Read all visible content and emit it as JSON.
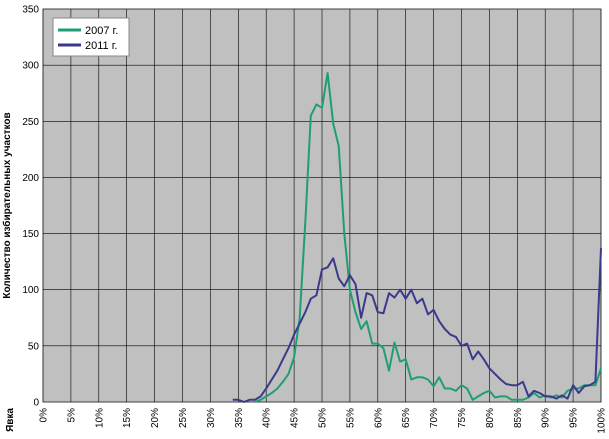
{
  "chart_data": {
    "type": "line",
    "title": "",
    "xlabel": "Явка",
    "ylabel": "Количество избирательных участков",
    "ylim": [
      0,
      350
    ],
    "xlim": [
      0,
      100
    ],
    "x_ticks": [
      "0%",
      "5%",
      "10%",
      "15%",
      "20%",
      "25%",
      "30%",
      "35%",
      "40%",
      "45%",
      "50%",
      "55%",
      "60%",
      "65%",
      "70%",
      "75%",
      "80%",
      "85%",
      "90%",
      "95%",
      "100%"
    ],
    "y_ticks": [
      0,
      50,
      100,
      150,
      200,
      250,
      300,
      350
    ],
    "legend_position": "top-left",
    "grid": true,
    "plot_background": "#c0c0c0",
    "series": [
      {
        "name": "2007 г.",
        "color": "#1f9e74",
        "x": [
          38,
          39,
          40,
          41,
          42,
          43,
          44,
          45,
          46,
          47,
          48,
          49,
          50,
          51,
          52,
          53,
          54,
          55,
          56,
          57,
          58,
          59,
          60,
          61,
          62,
          63,
          64,
          65,
          66,
          67,
          68,
          69,
          70,
          71,
          72,
          73,
          74,
          75,
          76,
          77,
          78,
          79,
          80,
          81,
          82,
          83,
          84,
          85,
          86,
          87,
          88,
          89,
          90,
          91,
          92,
          93,
          94,
          95,
          96,
          97,
          98,
          99,
          100
        ],
        "y": [
          0,
          2,
          5,
          8,
          12,
          18,
          25,
          40,
          75,
          160,
          255,
          265,
          262,
          293,
          248,
          228,
          150,
          100,
          80,
          65,
          72,
          52,
          52,
          48,
          28,
          53,
          36,
          38,
          20,
          22,
          22,
          20,
          14,
          22,
          12,
          12,
          10,
          15,
          12,
          2,
          5,
          8,
          10,
          4,
          5,
          5,
          2,
          2,
          2,
          4,
          8,
          4,
          6,
          4,
          6,
          4,
          10,
          12,
          12,
          15,
          15,
          15,
          30
        ]
      },
      {
        "name": "2011 г.",
        "color": "#3a3a8c",
        "x": [
          34,
          35,
          36,
          37,
          38,
          39,
          40,
          41,
          42,
          43,
          44,
          45,
          46,
          47,
          48,
          49,
          50,
          51,
          52,
          53,
          54,
          55,
          56,
          57,
          58,
          59,
          60,
          61,
          62,
          63,
          64,
          65,
          66,
          67,
          68,
          69,
          70,
          71,
          72,
          73,
          74,
          75,
          76,
          77,
          78,
          79,
          80,
          81,
          82,
          83,
          84,
          85,
          86,
          87,
          88,
          89,
          90,
          91,
          92,
          93,
          94,
          95,
          96,
          97,
          98,
          99,
          100
        ],
        "y": [
          2,
          2,
          0,
          2,
          2,
          5,
          12,
          20,
          28,
          38,
          48,
          60,
          70,
          80,
          92,
          95,
          118,
          120,
          128,
          110,
          103,
          113,
          105,
          75,
          97,
          95,
          80,
          79,
          97,
          93,
          100,
          92,
          100,
          88,
          92,
          78,
          82,
          72,
          65,
          60,
          58,
          50,
          52,
          38,
          45,
          38,
          30,
          25,
          20,
          16,
          15,
          15,
          18,
          5,
          10,
          8,
          5,
          5,
          3,
          6,
          3,
          15,
          8,
          14,
          15,
          18,
          137
        ]
      }
    ]
  }
}
